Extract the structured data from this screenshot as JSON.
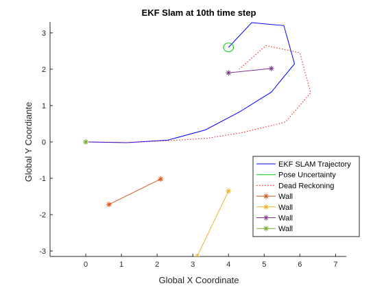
{
  "chart_data": {
    "type": "line",
    "title": "EKF Slam at 10th time step",
    "xlabel": "Global X Coordinate",
    "ylabel": "Global Y Coordiante",
    "xlim": [
      -1,
      7.3
    ],
    "ylim": [
      -3.15,
      3.3
    ],
    "xticks": [
      0,
      1,
      2,
      3,
      4,
      5,
      6,
      7
    ],
    "yticks": [
      -3,
      -2,
      -1,
      0,
      1,
      2,
      3
    ],
    "legend_position": "lower-right",
    "series": [
      {
        "name": "EKF SLAM Trajectory",
        "style": "line",
        "color": "#0000ff",
        "x": [
          0,
          1.15,
          2.3,
          3.35,
          4.3,
          5.2,
          5.85,
          5.55,
          4.65,
          4.0
        ],
        "y": [
          0,
          -0.02,
          0.05,
          0.33,
          0.82,
          1.37,
          2.15,
          3.2,
          3.28,
          2.6
        ]
      },
      {
        "name": "Pose Uncertainty",
        "style": "ellipse",
        "color": "#00cc00",
        "center": [
          4.0,
          2.6
        ],
        "radii": [
          0.14,
          0.12
        ]
      },
      {
        "name": "Dead Reckoning",
        "style": "dotted",
        "color": "#ff0000",
        "x": [
          0,
          1.2,
          2.4,
          3.4,
          4.35,
          5.2,
          5.6,
          6.3,
          6.0,
          5.05,
          4.3
        ],
        "y": [
          0,
          -0.02,
          0.04,
          0.1,
          0.25,
          0.45,
          0.55,
          1.35,
          2.45,
          2.65,
          2.0
        ]
      },
      {
        "name": "Wall",
        "style": "line-star",
        "color": "#d95319",
        "x": [
          0.65,
          2.1
        ],
        "y": [
          -1.72,
          -1.02
        ]
      },
      {
        "name": "Wall",
        "style": "line-star",
        "color": "#edb120",
        "x": [
          3.12,
          4.0
        ],
        "y": [
          -3.15,
          -1.35
        ]
      },
      {
        "name": "Wall",
        "style": "line-star",
        "color": "#7e2f8e",
        "x": [
          4.0,
          5.2
        ],
        "y": [
          1.9,
          2.02
        ]
      },
      {
        "name": "Wall",
        "style": "line-star",
        "color": "#77ac30",
        "x": [
          0,
          0
        ],
        "y": [
          0,
          0
        ]
      }
    ]
  }
}
